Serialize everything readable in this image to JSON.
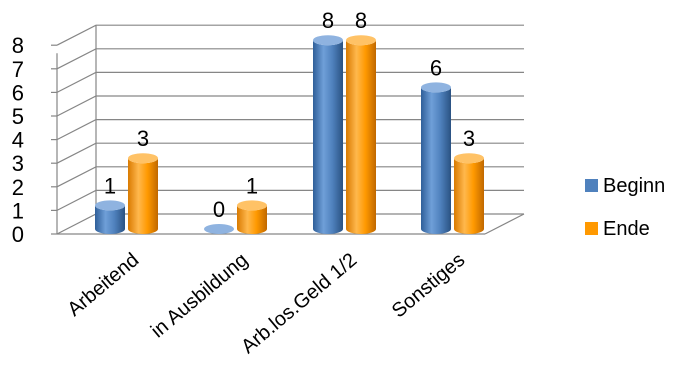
{
  "chart_data": {
    "type": "bar",
    "style": "3d-cylinder",
    "categories": [
      "Arbeitend",
      "in Ausbildung",
      "Arb.los.Geld 1/2",
      "Sonstiges"
    ],
    "series": [
      {
        "name": "Beginn",
        "values": [
          1,
          0,
          8,
          6
        ],
        "color": "#4F81BD"
      },
      {
        "name": "Ende",
        "values": [
          3,
          1,
          8,
          3
        ],
        "color": "#FF9900"
      }
    ],
    "yticks": [
      "0",
      "1",
      "2",
      "3",
      "4",
      "5",
      "6",
      "7",
      "8"
    ],
    "ylim": [
      0,
      8
    ],
    "grid": true,
    "legend": "right",
    "data_labels": true
  }
}
